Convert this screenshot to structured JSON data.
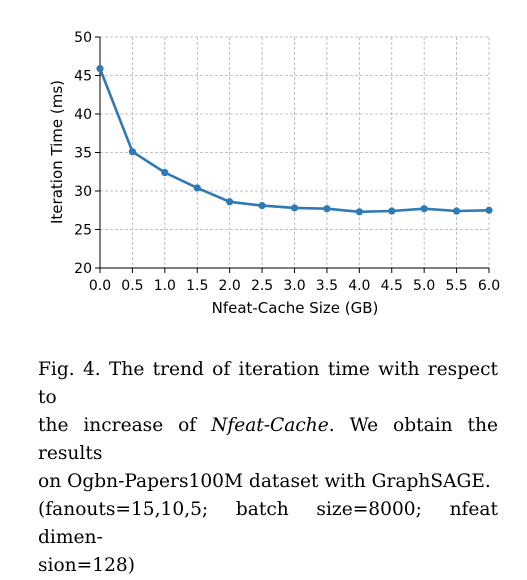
{
  "chart_data": {
    "type": "line",
    "xlabel": "Nfeat-Cache Size (GB)",
    "ylabel": "Iteration Time (ms)",
    "xlim": [
      0.0,
      6.0
    ],
    "ylim": [
      20,
      50
    ],
    "xticks": [
      "0.0",
      "0.5",
      "1.0",
      "1.5",
      "2.0",
      "2.5",
      "3.0",
      "3.5",
      "4.0",
      "4.5",
      "5.0",
      "5.5",
      "6.0"
    ],
    "yticks": [
      "20",
      "25",
      "30",
      "35",
      "40",
      "45",
      "50"
    ],
    "grid": true,
    "color": "#2f79b5",
    "x": [
      0.0,
      0.5,
      1.0,
      1.5,
      2.0,
      2.5,
      3.0,
      3.5,
      4.0,
      4.5,
      5.0,
      5.5,
      6.0
    ],
    "y": [
      45.9,
      35.1,
      32.4,
      30.4,
      28.6,
      28.1,
      27.8,
      27.7,
      27.3,
      27.4,
      27.7,
      27.4,
      27.5
    ]
  },
  "caption": {
    "line1": "Fig. 4.  The trend of iteration time with respect to",
    "line2_pre": "the increase of ",
    "line2_em": "Nfeat-Cache",
    "line2_post": ". We obtain the results",
    "line3": "on Ogbn-Papers100M dataset with GraphSAGE.",
    "line4": "(fanouts=15,10,5; batch size=8000; nfeat dimen-",
    "line5": "sion=128)"
  }
}
